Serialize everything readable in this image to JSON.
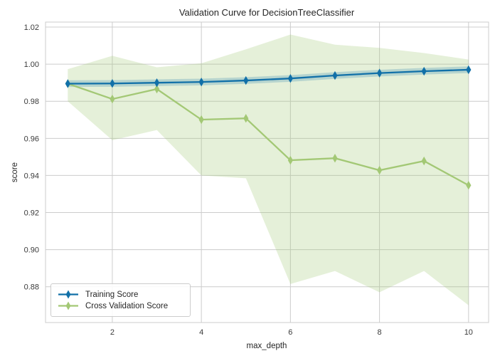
{
  "figure": {
    "title": "Validation Curve for DecisionTreeClassifier",
    "background": "#ffffff",
    "grid_color": "#cccccc",
    "text_color": "#262626",
    "tick_label_color": "#3a3a3a"
  },
  "chart_data": {
    "type": "line",
    "title": "Validation Curve for DecisionTreeClassifier",
    "xlabel": "max_depth",
    "ylabel": "score",
    "x": [
      1,
      2,
      3,
      4,
      5,
      6,
      7,
      8,
      9,
      10
    ],
    "xlim": [
      0.5,
      10.45
    ],
    "ylim": [
      0.8607,
      1.0227
    ],
    "xticks": [
      2,
      4,
      6,
      8,
      10
    ],
    "xtick_labels": [
      "2",
      "4",
      "6",
      "8",
      "10"
    ],
    "yticks": [
      0.88,
      0.9,
      0.92,
      0.94,
      0.96,
      0.98,
      1.0,
      1.02
    ],
    "ytick_labels": [
      "0.88",
      "0.90",
      "0.92",
      "0.94",
      "0.96",
      "0.98",
      "1.00",
      "1.02"
    ],
    "grid": true,
    "legend_position": "lower left",
    "series": [
      {
        "name": "Training Score",
        "color": "#1170a8",
        "fill_color": "rgba(17,112,168,0.22)",
        "marker": "thin-diamond",
        "values": [
          0.9895,
          0.9896,
          0.99,
          0.9904,
          0.9912,
          0.9923,
          0.9939,
          0.9952,
          0.9962,
          0.997
        ],
        "band_upper": [
          0.9913,
          0.9914,
          0.9918,
          0.9922,
          0.993,
          0.9941,
          0.9957,
          0.997,
          0.998,
          0.9988
        ],
        "band_lower": [
          0.9877,
          0.9878,
          0.9882,
          0.9886,
          0.9894,
          0.9905,
          0.9921,
          0.9934,
          0.9944,
          0.9952
        ]
      },
      {
        "name": "Cross Validation Score",
        "color": "#a3c875",
        "fill_color": "rgba(163,200,117,0.28)",
        "marker": "thin-diamond",
        "values": [
          0.9895,
          0.9812,
          0.9866,
          0.9701,
          0.9708,
          0.9482,
          0.9493,
          0.9428,
          0.9478,
          0.9347
        ],
        "band_upper": [
          0.9973,
          1.0045,
          0.9983,
          1.0005,
          1.008,
          1.016,
          1.0105,
          1.0088,
          1.006,
          1.0025
        ],
        "band_lower": [
          0.98,
          0.959,
          0.9645,
          0.94,
          0.9385,
          0.8815,
          0.8885,
          0.877,
          0.8885,
          0.87
        ]
      }
    ]
  },
  "legend": {
    "items": [
      {
        "label": "Training Score",
        "color": "#1170a8"
      },
      {
        "label": "Cross Validation Score",
        "color": "#a3c875"
      }
    ]
  }
}
